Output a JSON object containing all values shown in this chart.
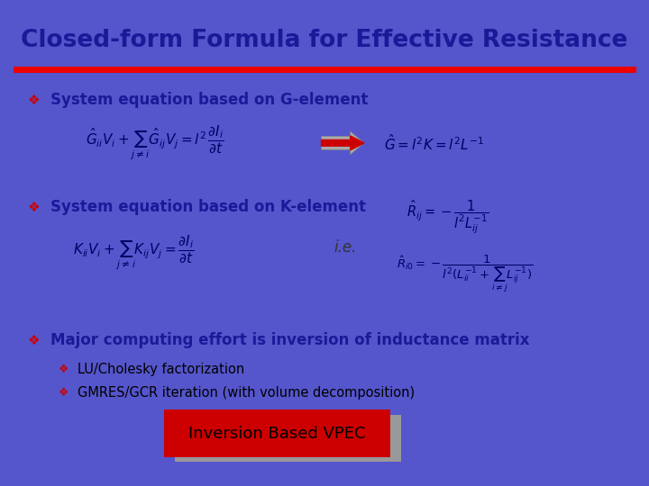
{
  "title": "Closed-form Formula for Effective Resistance",
  "title_color": "#1a1a99",
  "title_fontsize": 19,
  "bg_color": "#ffffff",
  "border_color": "#5555cc",
  "header_line_color": "#ee0000",
  "bullet_color": "#cc0000",
  "text_color": "#000000",
  "dark_blue": "#1a1a99",
  "eq_color": "#000066",
  "bullet1_label": "System equation based on G-element",
  "bullet2_label": "System equation based on K-element",
  "bullet3_label": "Major computing effort is inversion of inductance matrix",
  "sub1": "LU/Cholesky factorization",
  "sub2": "GMRES/GCR iteration (with volume decomposition)",
  "ie_text": "i.e.",
  "box_text": "Inversion Based VPEC",
  "box_bg": "#cc0000",
  "box_fg": "#000000",
  "box_shadow": "#999999"
}
